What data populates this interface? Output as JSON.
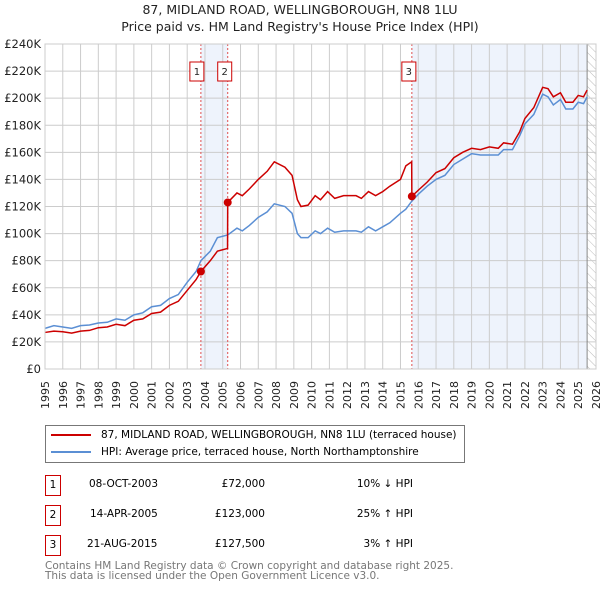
{
  "chart_data": {
    "type": "line",
    "title": "87, MIDLAND ROAD, WELLINGBOROUGH, NN8 1LU",
    "subtitle": "Price paid vs. HM Land Registry's House Price Index (HPI)",
    "xlim": [
      1995,
      2026
    ],
    "ylim": [
      0,
      240000
    ],
    "x_ticks": [
      "1995",
      "1996",
      "1997",
      "1998",
      "1999",
      "2000",
      "2001",
      "2002",
      "2003",
      "2004",
      "2005",
      "2006",
      "2007",
      "2008",
      "2009",
      "2010",
      "2011",
      "2012",
      "2013",
      "2014",
      "2015",
      "2016",
      "2017",
      "2018",
      "2019",
      "2020",
      "2021",
      "2022",
      "2023",
      "2024",
      "2025",
      "2026"
    ],
    "y_ticks": [
      "£0",
      "£20K",
      "£40K",
      "£60K",
      "£80K",
      "£100K",
      "£120K",
      "£140K",
      "£160K",
      "£180K",
      "£200K",
      "£220K",
      "£240K"
    ],
    "grid": true,
    "series": [
      {
        "name": "87, MIDLAND ROAD, WELLINGBOROUGH, NN8 1LU (terraced house)",
        "color": "#cc0000",
        "points": [
          [
            1995,
            27000
          ],
          [
            1995.5,
            28000
          ],
          [
            1996,
            27500
          ],
          [
            1996.5,
            26500
          ],
          [
            1997,
            28000
          ],
          [
            1997.5,
            28500
          ],
          [
            1998,
            30500
          ],
          [
            1998.5,
            31000
          ],
          [
            1999,
            33000
          ],
          [
            1999.5,
            32000
          ],
          [
            2000,
            36000
          ],
          [
            2000.5,
            37000
          ],
          [
            2001,
            41000
          ],
          [
            2001.5,
            42000
          ],
          [
            2002,
            47000
          ],
          [
            2002.5,
            50000
          ],
          [
            2003,
            58000
          ],
          [
            2003.5,
            66000
          ],
          [
            2003.77,
            72000
          ],
          [
            2004.3,
            80000
          ],
          [
            2004.7,
            87000
          ],
          [
            2005.27,
            89000
          ],
          [
            2005.28,
            123000
          ],
          [
            2005.8,
            130000
          ],
          [
            2006.1,
            128000
          ],
          [
            2006.5,
            133000
          ],
          [
            2007,
            140000
          ],
          [
            2007.5,
            146000
          ],
          [
            2007.9,
            153000
          ],
          [
            2008.5,
            149000
          ],
          [
            2008.9,
            143000
          ],
          [
            2009.2,
            125000
          ],
          [
            2009.4,
            120000
          ],
          [
            2009.8,
            121000
          ],
          [
            2010.2,
            128000
          ],
          [
            2010.5,
            125000
          ],
          [
            2010.9,
            131000
          ],
          [
            2011.3,
            126000
          ],
          [
            2011.8,
            128000
          ],
          [
            2012.5,
            128000
          ],
          [
            2012.8,
            126000
          ],
          [
            2013.2,
            131000
          ],
          [
            2013.6,
            128000
          ],
          [
            2014,
            131000
          ],
          [
            2014.4,
            135000
          ],
          [
            2015,
            140000
          ],
          [
            2015.3,
            150000
          ],
          [
            2015.63,
            153000
          ],
          [
            2015.64,
            127500
          ],
          [
            2016,
            132000
          ],
          [
            2016.5,
            138000
          ],
          [
            2017,
            145000
          ],
          [
            2017.5,
            148000
          ],
          [
            2018,
            156000
          ],
          [
            2018.5,
            160000
          ],
          [
            2019,
            163000
          ],
          [
            2019.5,
            162000
          ],
          [
            2020,
            164000
          ],
          [
            2020.5,
            163000
          ],
          [
            2020.8,
            167000
          ],
          [
            2021.3,
            166000
          ],
          [
            2021.7,
            175000
          ],
          [
            2022,
            185000
          ],
          [
            2022.5,
            193000
          ],
          [
            2023,
            208000
          ],
          [
            2023.3,
            207000
          ],
          [
            2023.6,
            201000
          ],
          [
            2024,
            204000
          ],
          [
            2024.3,
            197000
          ],
          [
            2024.7,
            197000
          ],
          [
            2025,
            202000
          ],
          [
            2025.3,
            201000
          ],
          [
            2025.5,
            206000
          ]
        ]
      },
      {
        "name": "HPI: Average price, terraced house, North Northamptonshire",
        "color": "#5b8fd4",
        "points": [
          [
            1995,
            30000
          ],
          [
            1995.5,
            32000
          ],
          [
            1996,
            31000
          ],
          [
            1996.5,
            30000
          ],
          [
            1997,
            32000
          ],
          [
            1997.5,
            32500
          ],
          [
            1998,
            34000
          ],
          [
            1998.5,
            34500
          ],
          [
            1999,
            37000
          ],
          [
            1999.5,
            36000
          ],
          [
            2000,
            40000
          ],
          [
            2000.5,
            41500
          ],
          [
            2001,
            46000
          ],
          [
            2001.5,
            47000
          ],
          [
            2002,
            52000
          ],
          [
            2002.5,
            55000
          ],
          [
            2003,
            64000
          ],
          [
            2003.5,
            72000
          ],
          [
            2003.77,
            80000
          ],
          [
            2004.3,
            87000
          ],
          [
            2004.7,
            97000
          ],
          [
            2005.28,
            99000
          ],
          [
            2005.8,
            104000
          ],
          [
            2006.1,
            102000
          ],
          [
            2006.5,
            106000
          ],
          [
            2007,
            112000
          ],
          [
            2007.5,
            116000
          ],
          [
            2007.9,
            122000
          ],
          [
            2008.5,
            120000
          ],
          [
            2008.9,
            115000
          ],
          [
            2009.2,
            100000
          ],
          [
            2009.4,
            97000
          ],
          [
            2009.8,
            97000
          ],
          [
            2010.2,
            102000
          ],
          [
            2010.5,
            100000
          ],
          [
            2010.9,
            104000
          ],
          [
            2011.3,
            101000
          ],
          [
            2011.8,
            102000
          ],
          [
            2012.5,
            102000
          ],
          [
            2012.8,
            101000
          ],
          [
            2013.2,
            105000
          ],
          [
            2013.6,
            102000
          ],
          [
            2014,
            105000
          ],
          [
            2014.4,
            108000
          ],
          [
            2015,
            115000
          ],
          [
            2015.3,
            118000
          ],
          [
            2015.64,
            124000
          ],
          [
            2016,
            129000
          ],
          [
            2016.5,
            135000
          ],
          [
            2017,
            140000
          ],
          [
            2017.5,
            143000
          ],
          [
            2018,
            151000
          ],
          [
            2018.5,
            155000
          ],
          [
            2019,
            159000
          ],
          [
            2019.5,
            158000
          ],
          [
            2020,
            158000
          ],
          [
            2020.5,
            158000
          ],
          [
            2020.8,
            162000
          ],
          [
            2021.3,
            162000
          ],
          [
            2021.7,
            172000
          ],
          [
            2022,
            181000
          ],
          [
            2022.5,
            188000
          ],
          [
            2023,
            203000
          ],
          [
            2023.3,
            201000
          ],
          [
            2023.6,
            195000
          ],
          [
            2024,
            199000
          ],
          [
            2024.3,
            192000
          ],
          [
            2024.7,
            192000
          ],
          [
            2025,
            197000
          ],
          [
            2025.3,
            196000
          ],
          [
            2025.5,
            201000
          ]
        ]
      }
    ],
    "sales": [
      {
        "id": "1",
        "x": 2003.77,
        "price": 72000
      },
      {
        "id": "2",
        "x": 2005.28,
        "price": 123000
      },
      {
        "id": "3",
        "x": 2015.64,
        "price": 127500
      }
    ],
    "shaded_ranges": [
      [
        2003.77,
        2005.28
      ],
      [
        2015.64,
        2025.5
      ]
    ],
    "hatched_after": 2025.5
  },
  "legend": {
    "property": "87, MIDLAND ROAD, WELLINGBOROUGH, NN8 1LU (terraced house)",
    "hpi": "HPI: Average price, terraced house, North Northamptonshire"
  },
  "transactions": [
    {
      "id": "1",
      "date": "08-OCT-2003",
      "price": "£72,000",
      "hpi": "10% ↓ HPI"
    },
    {
      "id": "2",
      "date": "14-APR-2005",
      "price": "£123,000",
      "hpi": "25% ↑ HPI"
    },
    {
      "id": "3",
      "date": "21-AUG-2015",
      "price": "£127,500",
      "hpi": "3% ↑ HPI"
    }
  ],
  "footer": {
    "line1": "Contains HM Land Registry data © Crown copyright and database right 2025.",
    "line2": "This data is licensed under the Open Government Licence v3.0."
  }
}
